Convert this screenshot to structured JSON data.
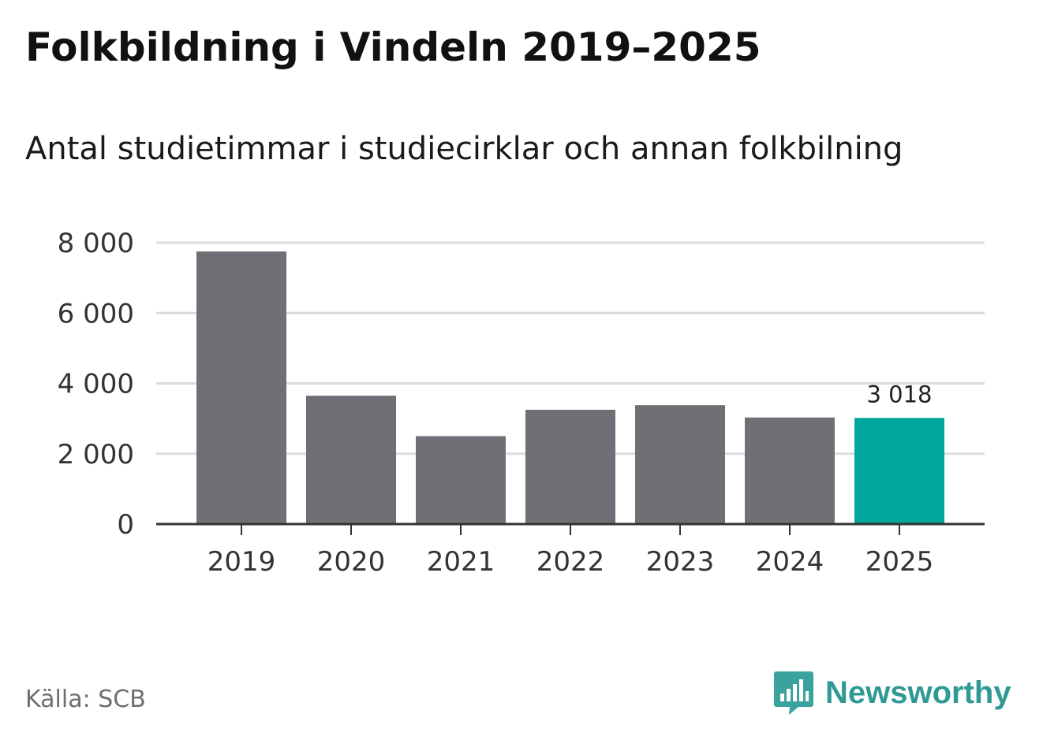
{
  "header": {
    "title": "Folkbildning i Vindeln 2019–2025",
    "subtitle": "Antal studietimmar i studiecirklar och annan folkbilning"
  },
  "footer": {
    "source": "Källa: SCB",
    "brand": "Newsworthy"
  },
  "colors": {
    "bar": "#706f75",
    "highlight": "#00a59b",
    "grid": "#dcdcdc",
    "axis": "#333333",
    "brand": "#2f9a95"
  },
  "chart_data": {
    "type": "bar",
    "title": "Folkbildning i Vindeln 2019–2025",
    "subtitle": "Antal studietimmar i studiecirklar och annan folkbilning",
    "xlabel": "",
    "ylabel": "",
    "categories": [
      "2019",
      "2020",
      "2021",
      "2022",
      "2023",
      "2024",
      "2025"
    ],
    "values": [
      7750,
      3650,
      2500,
      3250,
      3380,
      3030,
      3018
    ],
    "highlight_index": 6,
    "value_label": "3 018",
    "ylim": [
      0,
      8000
    ],
    "yticks": [
      0,
      2000,
      4000,
      6000,
      8000
    ],
    "ytick_labels": [
      "0",
      "2 000",
      "4 000",
      "6 000",
      "8 000"
    ],
    "grid": true
  }
}
